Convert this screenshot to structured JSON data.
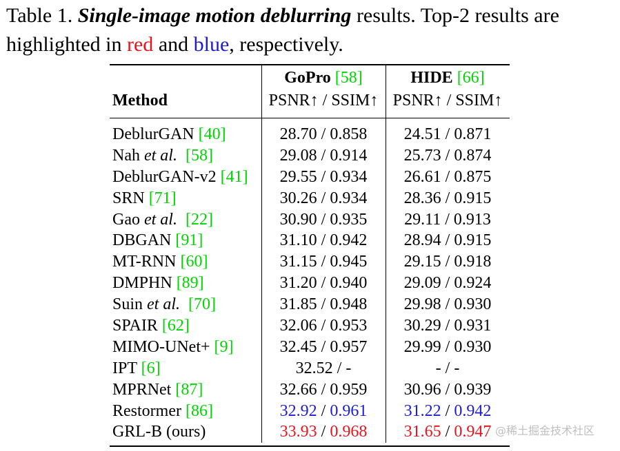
{
  "caption": {
    "prefix": "Table 1. ",
    "title": "Single-image motion deblurring",
    "rest1": " results. Top-2 results are highlighted in ",
    "red_word": "red",
    "and_word": " and ",
    "blue_word": "blue",
    "suffix": ", respectively."
  },
  "table": {
    "method_header": "Method",
    "datasets": [
      {
        "name": "GoPro",
        "ref": "[58]",
        "metric": "PSNR↑ / SSIM↑"
      },
      {
        "name": "HIDE",
        "ref": "[66]",
        "metric": "PSNR↑ / SSIM↑"
      }
    ],
    "rows": [
      {
        "m": "DeblurGAN ",
        "mi": "",
        "ref": "[40]",
        "g1": "28.70 / 0.858",
        "h1": "24.51 / 0.871"
      },
      {
        "m": "Nah ",
        "mi": "et al.",
        "ref": "[58]",
        "g1": "29.08 / 0.914",
        "h1": "25.73 / 0.874"
      },
      {
        "m": "DeblurGAN-v2 ",
        "mi": "",
        "ref": "[41]",
        "g1": "29.55 / 0.934",
        "h1": "26.61 / 0.875"
      },
      {
        "m": "SRN ",
        "mi": "",
        "ref": "[71]",
        "g1": "30.26 / 0.934",
        "h1": "28.36 / 0.915"
      },
      {
        "m": "Gao ",
        "mi": "et al.",
        "ref": "[22]",
        "g1": "30.90 / 0.935",
        "h1": "29.11 / 0.913"
      },
      {
        "m": "DBGAN ",
        "mi": "",
        "ref": "[91]",
        "g1": "31.10 / 0.942",
        "h1": "28.94 / 0.915"
      },
      {
        "m": "MT-RNN ",
        "mi": "",
        "ref": "[60]",
        "g1": "31.15 / 0.945",
        "h1": "29.15 / 0.918"
      },
      {
        "m": "DMPHN ",
        "mi": "",
        "ref": "[89]",
        "g1": "31.20 / 0.940",
        "h1": "29.09 / 0.924"
      },
      {
        "m": "Suin ",
        "mi": "et al.",
        "ref": "[70]",
        "g1": "31.85 / 0.948",
        "h1": "29.98 / 0.930"
      },
      {
        "m": "SPAIR ",
        "mi": "",
        "ref": "[62]",
        "g1": "32.06 / 0.953",
        "h1": "30.29 / 0.931"
      },
      {
        "m": "MIMO-UNet+ ",
        "mi": "",
        "ref": "[9]",
        "g1": "32.45 / 0.957",
        "h1": "29.99 / 0.930"
      },
      {
        "m": "IPT ",
        "mi": "",
        "ref": "[6]",
        "g1": "32.52 / -",
        "h1": "- / -"
      },
      {
        "m": "MPRNet ",
        "mi": "",
        "ref": "[87]",
        "g1": "32.66 / 0.959",
        "h1": "30.96 / 0.939"
      }
    ],
    "restormer": {
      "m": "Restormer ",
      "ref": "[86]",
      "gp": "32.92",
      "gs": "0.961",
      "hp": "31.22",
      "hs": "0.942"
    },
    "grl": {
      "m": "GRL-B (ours)",
      "gp": "33.93",
      "gs": "0.968",
      "hp": "31.65",
      "hs": "0.947"
    },
    "sep": " / "
  },
  "watermark": "@稀土掘金技术社区",
  "colors": {
    "first": "#e8141c",
    "second": "#1c1cd6",
    "citation": "#00d600"
  }
}
